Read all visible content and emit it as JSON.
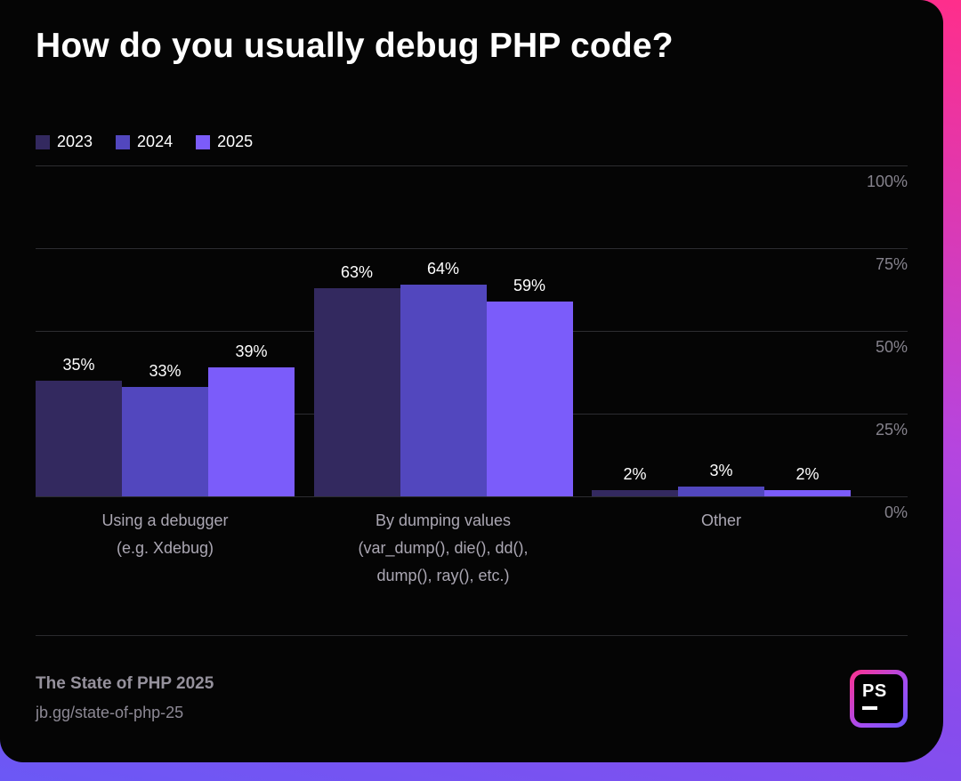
{
  "title": "How do you usually debug PHP code?",
  "chart_data": {
    "type": "bar",
    "title": "How do you usually debug PHP code?",
    "categories": [
      "Using a debugger (e.g. Xdebug)",
      "By dumping values (var_dump(), die(), dd(), dump(), ray(), etc.)",
      "Other"
    ],
    "category_lines": [
      [
        "Using a debugger",
        "(e.g. Xdebug)"
      ],
      [
        "By dumping values",
        "(var_dump(), die(), dd(),",
        "dump(), ray(), etc.)"
      ],
      [
        "Other"
      ]
    ],
    "series": [
      {
        "name": "2023",
        "color": "#33295F",
        "values": [
          35,
          63,
          2
        ]
      },
      {
        "name": "2024",
        "color": "#5247BE",
        "values": [
          33,
          64,
          3
        ]
      },
      {
        "name": "2025",
        "color": "#7B5CFA",
        "values": [
          39,
          59,
          2
        ]
      }
    ],
    "ticks": [
      {
        "value": 100,
        "label": "100%"
      },
      {
        "value": 75,
        "label": "75%"
      },
      {
        "value": 50,
        "label": "50%"
      },
      {
        "value": 25,
        "label": "25%"
      },
      {
        "value": 0,
        "label": "0%"
      }
    ],
    "ylim": [
      0,
      100
    ],
    "grid": true,
    "legend_position": "top-left",
    "value_suffix": "%"
  },
  "footer": {
    "title": "The State of PHP 2025",
    "link": "jb.gg/state-of-php-25",
    "logo_text": "PS"
  },
  "colors": {
    "card_background": "#050505",
    "gradient_top": "#FF2E8B",
    "gradient_mid": "#A24BE8",
    "gradient_bottom": "#6B58F5",
    "gridline": "#2D2D31",
    "tick_label": "#85828C",
    "category_label": "#ABA7B3",
    "footer_text": "#92909B"
  }
}
